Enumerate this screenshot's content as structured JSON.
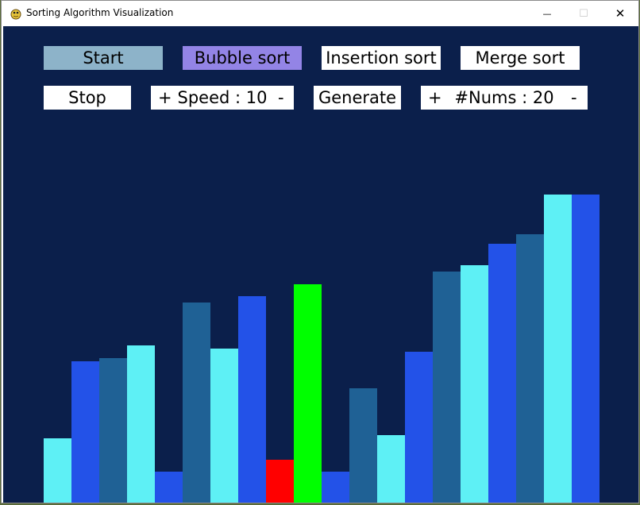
{
  "window": {
    "title": "Sorting Algorithm Visualization",
    "minimize_glyph": "—",
    "maximize_glyph": "☐",
    "close_glyph": "✕"
  },
  "toolbar": {
    "start_label": "Start",
    "bubble_label": "Bubble sort",
    "insertion_label": "Insertion sort",
    "merge_label": "Merge sort",
    "stop_label": "Stop",
    "speed_plus": "+",
    "speed_label": "Speed : 10",
    "speed_minus": "-",
    "generate_label": "Generate",
    "nums_plus": "+",
    "nums_label": "#Nums : 20",
    "nums_minus": "-"
  },
  "colors": {
    "background": "#0b1f4b",
    "start_button": "#8db3c9",
    "active_algorithm": "#9384e6",
    "button": "#ffffff",
    "bar_palette": [
      "#5ef0f5",
      "#2352e8",
      "#1f6195"
    ],
    "compare": "#ff0000",
    "current": "#00ff00"
  },
  "bars": {
    "max_value": 100,
    "values": [
      21,
      46,
      47,
      51,
      10,
      65,
      50,
      67,
      14,
      71,
      10,
      37,
      22,
      49,
      75,
      77,
      84,
      87,
      100,
      100
    ],
    "colors": [
      "#5ef0f5",
      "#2352e8",
      "#1f6195",
      "#5ef0f5",
      "#2352e8",
      "#1f6195",
      "#5ef0f5",
      "#2352e8",
      "#ff0000",
      "#00ff00",
      "#2352e8",
      "#1f6195",
      "#5ef0f5",
      "#2352e8",
      "#1f6195",
      "#5ef0f5",
      "#2352e8",
      "#1f6195",
      "#5ef0f5",
      "#2352e8"
    ]
  }
}
